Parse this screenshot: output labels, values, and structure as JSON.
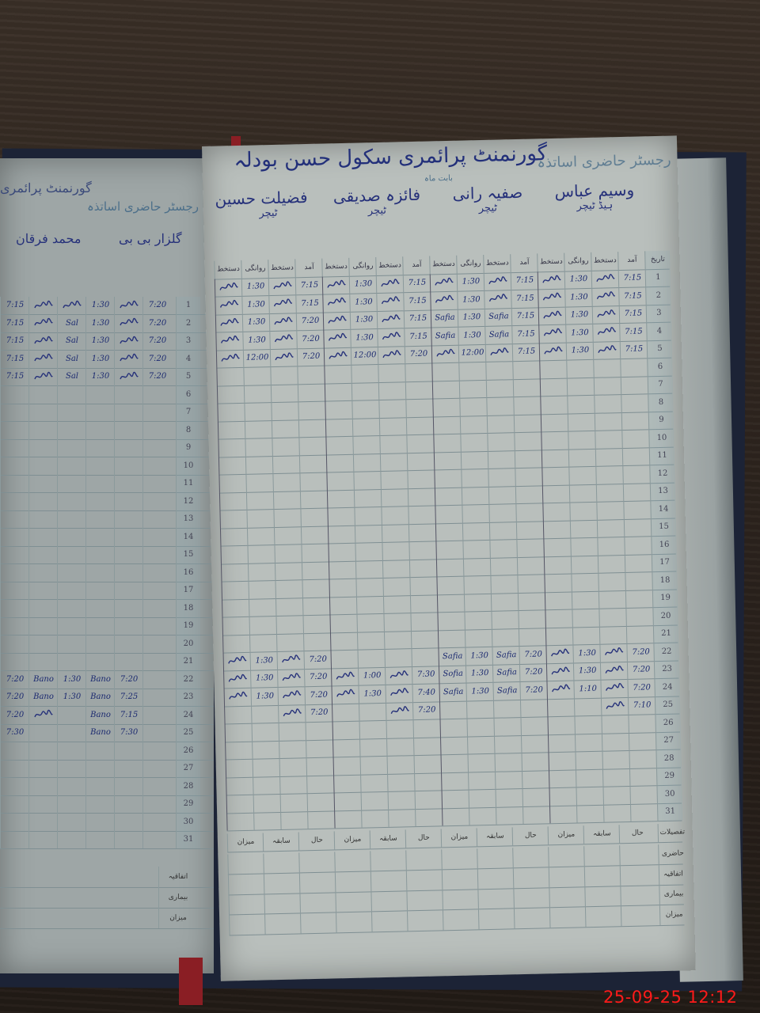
{
  "right_page": {
    "school_title": "گورنمنٹ پرائمری سکول حسن بودلہ",
    "register_title": "رجسٹر حاضری اساتذہ",
    "month_label": "بابت ماہ",
    "row_number_header": "تاریخ",
    "sub_headers": [
      "دستخط",
      "روانگی",
      "دستخط",
      "آمد"
    ],
    "teachers": [
      {
        "name": "فضیلت حسین",
        "role": "ٹیچر"
      },
      {
        "name": "فائزہ صدیقی",
        "role": "ٹیچر"
      },
      {
        "name": "صفیہ رانی",
        "role": "ٹیچر"
      },
      {
        "name": "وسیم عباس",
        "role": "ہیڈ ٹیچر"
      }
    ],
    "entries": {
      "1": [
        "sig",
        "1:30",
        "sig",
        "7:15",
        "sig",
        "1:30",
        "sig",
        "7:15",
        "sig",
        "1:30",
        "sig",
        "7:15",
        "sig",
        "1:30",
        "sig",
        "7:15"
      ],
      "2": [
        "sig",
        "1:30",
        "sig",
        "7:15",
        "sig",
        "1:30",
        "sig",
        "7:15",
        "sig",
        "1:30",
        "sig",
        "7:15",
        "sig",
        "1:30",
        "sig",
        "7:15"
      ],
      "3": [
        "sig",
        "1:30",
        "sig",
        "7:20",
        "sig",
        "1:30",
        "sig",
        "7:15",
        "Safia",
        "1:30",
        "Safia",
        "7:15",
        "sig",
        "1:30",
        "sig",
        "7:15"
      ],
      "4": [
        "sig",
        "1:30",
        "sig",
        "7:20",
        "sig",
        "1:30",
        "sig",
        "7:15",
        "Safia",
        "1:30",
        "Safia",
        "7:15",
        "sig",
        "1:30",
        "sig",
        "7:15"
      ],
      "5": [
        "sig",
        "12:00",
        "sig",
        "7:20",
        "sig",
        "12:00",
        "sig",
        "7:20",
        "sig",
        "12:00",
        "sig",
        "7:15",
        "sig",
        "1:30",
        "sig",
        "7:15"
      ],
      "22": [
        "sig",
        "1:30",
        "sig",
        "7:20",
        "",
        "",
        "",
        "",
        "Safia",
        "1:30",
        "Safia",
        "7:20",
        "sig",
        "1:30",
        "sig",
        "7:20"
      ],
      "23": [
        "sig",
        "1:30",
        "sig",
        "7:20",
        "sig",
        "1:00",
        "sig",
        "7:30",
        "Sofia",
        "1:30",
        "Safia",
        "7:20",
        "sig",
        "1:30",
        "sig",
        "7:20"
      ],
      "24": [
        "sig",
        "1:30",
        "sig",
        "7:20",
        "sig",
        "1:30",
        "sig",
        "7:40",
        "Safia",
        "1:30",
        "Safia",
        "7:20",
        "sig",
        "1:10",
        "sig",
        "7:20"
      ],
      "25": [
        "",
        "",
        "sig",
        "7:20",
        "",
        "",
        "sig",
        "7:20",
        "",
        "",
        "",
        "",
        "",
        "",
        "sig",
        "7:10"
      ]
    },
    "summary": {
      "header": "تفصیلات",
      "columns": [
        "حال",
        "سابقہ",
        "میزان"
      ],
      "rows": [
        "حاضری",
        "اتفاقیہ",
        "بیماری",
        "میزان"
      ]
    }
  },
  "left_page": {
    "school_title": "گورنمنٹ پرائمری",
    "register_title": "رجسٹر حاضری اساتذہ",
    "teachers": [
      {
        "name": "محمد فرقان"
      },
      {
        "name": "گلزار بی بی"
      }
    ],
    "entries": {
      "1": [
        "7:15",
        "sig",
        "sig",
        "1:30",
        "sig",
        "7:20"
      ],
      "2": [
        "7:15",
        "sig",
        "Sal",
        "1:30",
        "sig",
        "7:20"
      ],
      "3": [
        "7:15",
        "sig",
        "Sal",
        "1:30",
        "sig",
        "7:20"
      ],
      "4": [
        "7:15",
        "sig",
        "Sal",
        "1:30",
        "sig",
        "7:20"
      ],
      "5": [
        "7:15",
        "sig",
        "Sal",
        "1:30",
        "sig",
        "7:20"
      ],
      "22": [
        "7:20",
        "Bano",
        "1:30",
        "Bano",
        "7:20",
        ""
      ],
      "23": [
        "7:20",
        "Bano",
        "1:30",
        "Bano",
        "7:25",
        ""
      ],
      "24": [
        "7:20",
        "sig",
        "",
        "Bano",
        "7:15",
        ""
      ],
      "25": [
        "7:30",
        "",
        "",
        "Bano",
        "7:30",
        ""
      ]
    },
    "summary_rows": [
      "اتفاقیہ",
      "بیماری",
      "میزان"
    ]
  },
  "photo_timestamp": "25-09-25  12:12",
  "colors": {
    "ink": "#26317a",
    "timestamp": "#ff1a1a",
    "paper": "#b9bfbc"
  }
}
